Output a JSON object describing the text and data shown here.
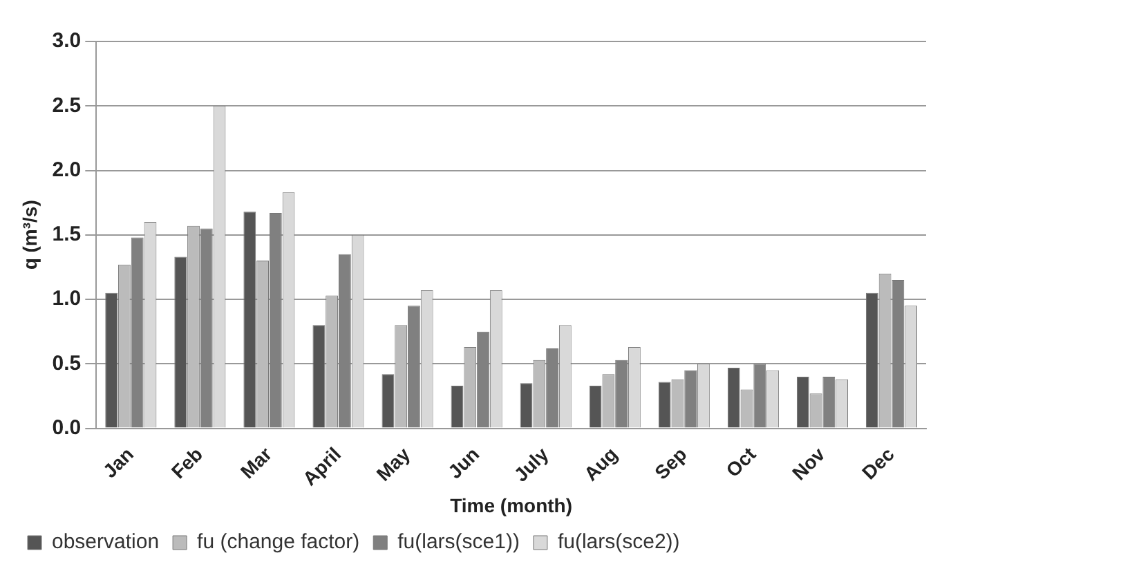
{
  "chart_data": {
    "type": "bar",
    "xlabel": "Time (month)",
    "ylabel": "q (m³/s)",
    "categories": [
      "Jan",
      "Feb",
      "Mar",
      "April",
      "May",
      "Jun",
      "July",
      "Aug",
      "Sep",
      "Oct",
      "Nov",
      "Dec"
    ],
    "series": [
      {
        "name": "observation",
        "color": "#555555",
        "values": [
          1.05,
          1.33,
          1.68,
          0.8,
          0.42,
          0.33,
          0.35,
          0.33,
          0.36,
          0.47,
          0.4,
          1.05
        ]
      },
      {
        "name": "fu (change factor)",
        "color": "#bbbbbb",
        "values": [
          1.27,
          1.57,
          1.3,
          1.03,
          0.8,
          0.63,
          0.53,
          0.42,
          0.38,
          0.3,
          0.27,
          1.2
        ]
      },
      {
        "name": "fu(lars(sce1))",
        "color": "#808080",
        "values": [
          1.48,
          1.55,
          1.67,
          1.35,
          0.95,
          0.75,
          0.62,
          0.53,
          0.45,
          0.5,
          0.4,
          1.15
        ]
      },
      {
        "name": "fu(lars(sce2))",
        "color": "#d9d9d9",
        "values": [
          1.6,
          2.5,
          1.83,
          1.5,
          1.07,
          1.07,
          0.8,
          0.63,
          0.5,
          0.45,
          0.38,
          0.95
        ]
      }
    ],
    "ylim": [
      0,
      3
    ],
    "yticks": [
      {
        "value": 0,
        "label": "0.0"
      },
      {
        "value": 0.5,
        "label": "0.5"
      },
      {
        "value": 1,
        "label": "1.0"
      },
      {
        "value": 1.5,
        "label": "1.5"
      },
      {
        "value": 2,
        "label": "2.0"
      },
      {
        "value": 2.5,
        "label": "2.5"
      },
      {
        "value": 3,
        "label": "3.0"
      }
    ],
    "grid": "y",
    "legend": "bottom"
  }
}
